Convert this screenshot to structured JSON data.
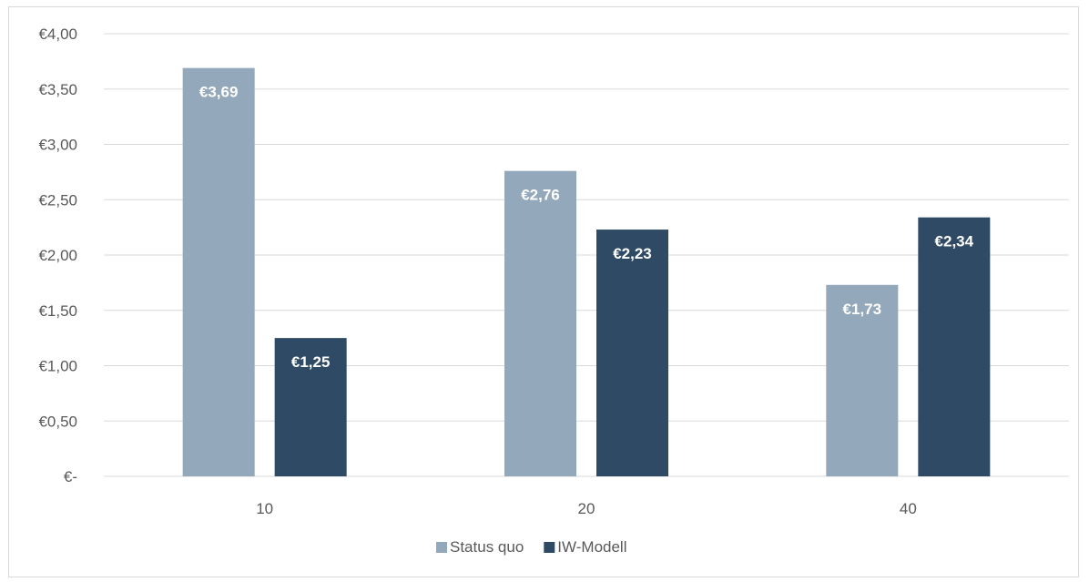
{
  "chart_data": {
    "type": "bar",
    "categories": [
      "10",
      "20",
      "40"
    ],
    "series": [
      {
        "name": "Status quo",
        "values": [
          3.69,
          2.76,
          1.73
        ],
        "labels": [
          "€3,69",
          "€2,76",
          "€1,73"
        ],
        "color": "#93a8bb"
      },
      {
        "name": "IW-Modell",
        "values": [
          1.25,
          2.23,
          2.34
        ],
        "labels": [
          "€1,25",
          "€2,23",
          "€2,34"
        ],
        "color": "#2e4a64"
      }
    ],
    "ylim": [
      0,
      4
    ],
    "yticks": [
      {
        "value": 0,
        "label": "€-"
      },
      {
        "value": 0.5,
        "label": "€0,50"
      },
      {
        "value": 1.0,
        "label": "€1,00"
      },
      {
        "value": 1.5,
        "label": "€1,50"
      },
      {
        "value": 2.0,
        "label": "€2,00"
      },
      {
        "value": 2.5,
        "label": "€2,50"
      },
      {
        "value": 3.0,
        "label": "€3,00"
      },
      {
        "value": 3.5,
        "label": "€3,50"
      },
      {
        "value": 4.0,
        "label": "€4,00"
      }
    ],
    "title": "",
    "xlabel": "",
    "ylabel": "",
    "grid": true,
    "gridColor": "#d9d9d9",
    "legend": "bottom"
  }
}
